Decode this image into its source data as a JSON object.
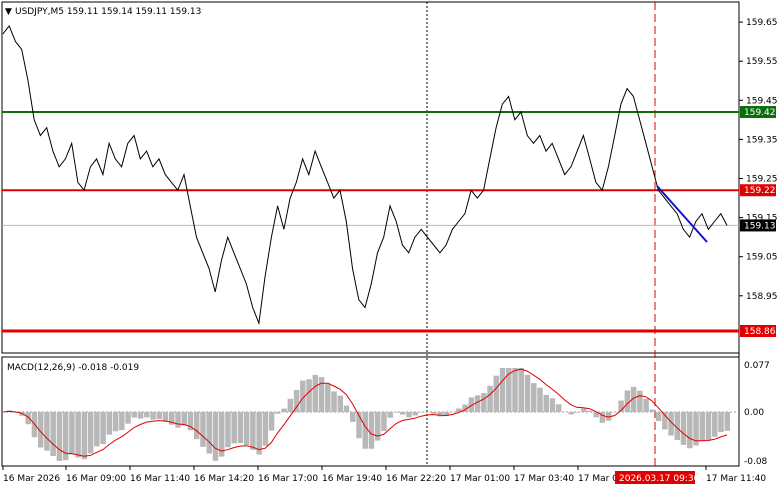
{
  "header": {
    "symbol_line": "USDJPY,M5  159.11 159.14 159.11 159.13"
  },
  "macd": {
    "label": "MACD(12,26,9) -0.018 -0.019",
    "ticks": [
      "0.077",
      "0.00",
      "-0.08"
    ]
  },
  "price_axis": {
    "ticks": [
      "159.65",
      "159.55",
      "159.45",
      "159.35",
      "159.25",
      "159.15",
      "159.05",
      "158.95"
    ]
  },
  "levels": {
    "green": {
      "label": "159.42",
      "value": 159.42,
      "color": "#0a6e0a"
    },
    "red_mid": {
      "label": "159.22",
      "value": 159.22,
      "color": "#e00000"
    },
    "red_low": {
      "label": "158.86",
      "value": 158.86,
      "color": "#e00000"
    },
    "current": {
      "label": "159.13",
      "value": 159.13,
      "color": "#000000"
    }
  },
  "time_axis": {
    "labels": [
      "16 Mar 2026",
      "16 Mar 09:00",
      "16 Mar 11:40",
      "16 Mar 14:20",
      "16 Mar 17:00",
      "16 Mar 19:40",
      "16 Mar 22:20",
      "17 Mar 01:00",
      "17 Mar 03:40",
      "17 Mar 0",
      "17 Mar 11:40"
    ],
    "highlight": "2026.03.17 09:30"
  },
  "chart_data": {
    "type": "line",
    "title": "USDJPY,M5",
    "ylim": [
      158.86,
      159.66
    ],
    "series": [
      {
        "values": [
          159.62,
          159.64,
          159.6,
          159.58,
          159.5,
          159.4,
          159.36,
          159.38,
          159.32,
          159.28,
          159.3,
          159.34,
          159.24,
          159.22,
          159.28,
          159.3,
          159.26,
          159.34,
          159.3,
          159.28,
          159.34,
          159.36,
          159.3,
          159.32,
          159.28,
          159.3,
          159.26,
          159.24,
          159.22,
          159.26,
          159.18,
          159.1,
          159.06,
          159.02,
          158.96,
          159.04,
          159.1,
          159.06,
          159.02,
          158.98,
          158.92,
          158.88,
          159.0,
          159.1,
          159.18,
          159.12,
          159.2,
          159.24,
          159.3,
          159.26,
          159.32,
          159.28,
          159.24,
          159.2,
          159.22,
          159.14,
          159.02,
          158.94,
          158.92,
          158.98,
          159.06,
          159.1,
          159.18,
          159.14,
          159.08,
          159.06,
          159.1,
          159.12,
          159.1,
          159.08,
          159.06,
          159.08,
          159.12,
          159.14,
          159.16,
          159.22,
          159.2,
          159.22,
          159.3,
          159.38,
          159.44,
          159.46,
          159.4,
          159.42,
          159.36,
          159.34,
          159.36,
          159.32,
          159.34,
          159.3,
          159.26,
          159.28,
          159.32,
          159.36,
          159.3,
          159.24,
          159.22,
          159.28,
          159.36,
          159.44,
          159.48,
          159.46,
          159.4,
          159.34,
          159.28,
          159.22,
          159.2,
          159.18,
          159.16,
          159.12,
          159.1,
          159.14,
          159.16,
          159.12,
          159.14,
          159.16,
          159.13
        ]
      }
    ]
  }
}
